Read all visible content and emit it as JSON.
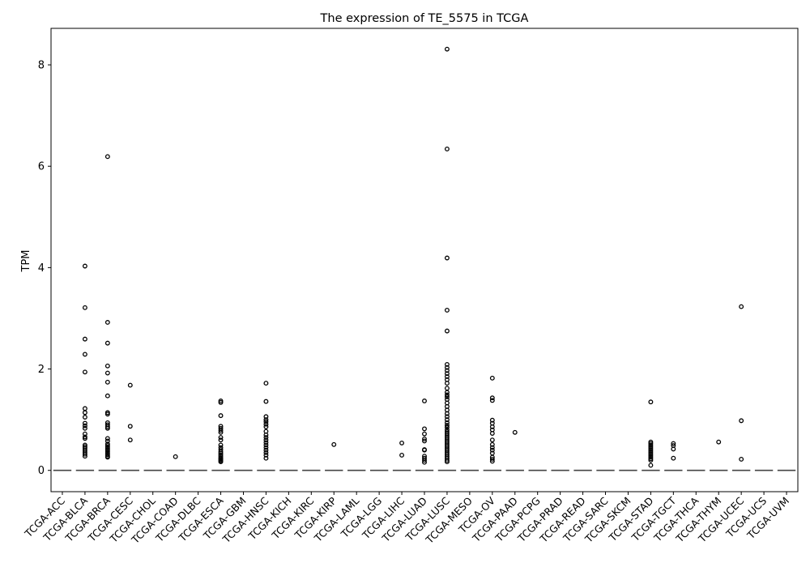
{
  "chart_data": {
    "type": "box",
    "title": "The expression of TE_5575 in TCGA",
    "xlabel": "",
    "ylabel": "TPM",
    "ylim": [
      -0.42,
      8.72
    ],
    "yticks": [
      0,
      2,
      4,
      6,
      8
    ],
    "grid": false,
    "legend": "none",
    "categories": [
      "TCGA-ACC",
      "TCGA-BLCA",
      "TCGA-BRCA",
      "TCGA-CESC",
      "TCGA-CHOL",
      "TCGA-COAD",
      "TCGA-DLBC",
      "TCGA-ESCA",
      "TCGA-GBM",
      "TCGA-HNSC",
      "TCGA-KICH",
      "TCGA-KIRC",
      "TCGA-KIRP",
      "TCGA-LAML",
      "TCGA-LGG",
      "TCGA-LIHC",
      "TCGA-LUAD",
      "TCGA-LUSC",
      "TCGA-MESO",
      "TCGA-OV",
      "TCGA-PAAD",
      "TCGA-PCPG",
      "TCGA-PRAD",
      "TCGA-READ",
      "TCGA-SARC",
      "TCGA-SKCM",
      "TCGA-STAD",
      "TCGA-TGCT",
      "TCGA-THCA",
      "TCGA-THYM",
      "TCGA-UCEC",
      "TCGA-UCS",
      "TCGA-UVM"
    ],
    "medians": [
      0,
      0,
      0,
      0,
      0,
      0,
      0,
      0,
      0,
      0,
      0,
      0,
      0,
      0,
      0,
      0,
      0,
      0,
      0,
      0,
      0,
      0,
      0,
      0,
      0,
      0,
      0,
      0,
      0,
      0,
      0,
      0,
      0
    ],
    "outliers": [
      [],
      [
        4.03,
        3.21,
        2.59,
        2.29,
        1.94,
        1.22,
        1.14,
        1.05,
        0.93,
        0.88,
        0.83,
        0.72,
        0.66,
        0.63,
        0.5,
        0.47,
        0.44,
        0.4,
        0.36,
        0.32,
        0.28
      ],
      [
        6.19,
        2.92,
        2.51,
        2.06,
        1.92,
        1.74,
        1.47,
        1.14,
        1.11,
        0.94,
        0.9,
        0.86,
        0.83,
        0.63,
        0.58,
        0.52,
        0.49,
        0.46,
        0.43,
        0.4,
        0.37,
        0.34,
        0.31,
        0.28,
        0.26
      ],
      [
        1.68,
        0.87,
        0.6
      ],
      [],
      [
        0.27
      ],
      [],
      [
        1.37,
        1.34,
        1.08,
        0.87,
        0.83,
        0.79,
        0.75,
        0.65,
        0.6,
        0.5,
        0.45,
        0.41,
        0.37,
        0.34,
        0.31,
        0.28,
        0.25,
        0.23,
        0.21,
        0.19,
        0.17
      ],
      [],
      [
        1.72,
        1.36,
        1.06,
        1.0,
        0.96,
        0.91,
        0.86,
        0.77,
        0.7,
        0.65,
        0.6,
        0.55,
        0.5,
        0.45,
        0.4,
        0.35,
        0.3,
        0.24
      ],
      [],
      [],
      [
        0.51
      ],
      [],
      [],
      [
        0.54,
        0.3
      ],
      [
        1.37,
        0.82,
        0.72,
        0.62,
        0.58,
        0.41,
        0.4,
        0.28,
        0.24,
        0.2,
        0.16
      ],
      [
        8.31,
        6.34,
        4.19,
        3.16,
        2.75,
        2.09,
        2.03,
        1.97,
        1.91,
        1.85,
        1.79,
        1.72,
        1.62,
        1.54,
        1.49,
        1.45,
        1.4,
        1.33,
        1.26,
        1.19,
        1.12,
        1.06,
        1.0,
        0.94,
        0.89,
        0.85,
        0.8,
        0.76,
        0.72,
        0.68,
        0.64,
        0.6,
        0.56,
        0.52,
        0.48,
        0.44,
        0.4,
        0.36,
        0.32,
        0.28,
        0.24,
        0.2,
        0.17
      ],
      [],
      [
        1.82,
        1.43,
        1.38,
        0.99,
        0.93,
        0.86,
        0.8,
        0.73,
        0.6,
        0.51,
        0.45,
        0.4,
        0.34,
        0.26,
        0.22,
        0.18
      ],
      [
        0.75
      ],
      [],
      [],
      [],
      [],
      [],
      [
        1.35,
        0.56,
        0.53,
        0.5,
        0.47,
        0.44,
        0.41,
        0.38,
        0.35,
        0.32,
        0.29,
        0.26,
        0.23,
        0.2,
        0.1
      ],
      [
        0.53,
        0.49,
        0.42,
        0.24
      ],
      [],
      [
        0.56
      ],
      [
        3.23,
        0.98,
        0.22
      ],
      [],
      []
    ]
  }
}
